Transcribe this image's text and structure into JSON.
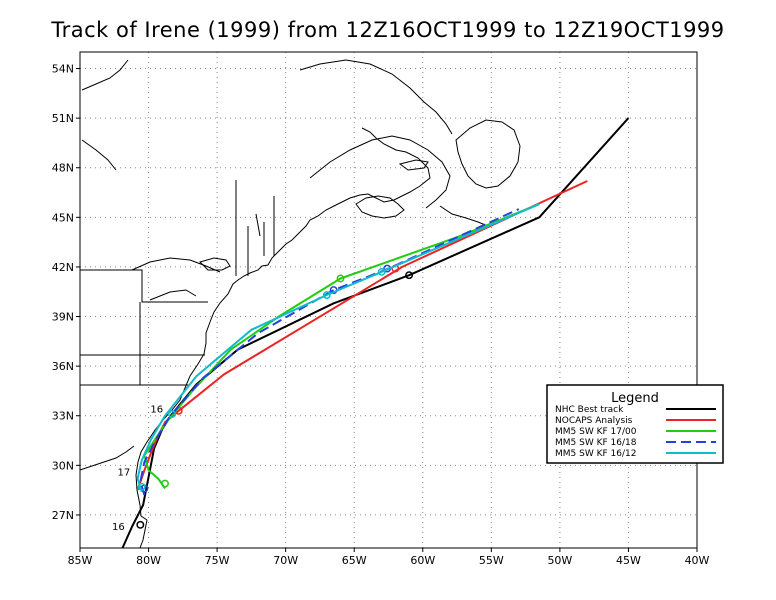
{
  "title": "Track of Irene (1999) from 12Z16OCT1999 to 12Z19OCT1999",
  "map": {
    "lon_range": [
      -85,
      -40
    ],
    "lat_range": [
      25,
      55
    ],
    "lon_ticks": [
      {
        "value": -85,
        "label": "85W"
      },
      {
        "value": -80,
        "label": "80W"
      },
      {
        "value": -75,
        "label": "75W"
      },
      {
        "value": -70,
        "label": "70W"
      },
      {
        "value": -65,
        "label": "65W"
      },
      {
        "value": -60,
        "label": "60W"
      },
      {
        "value": -55,
        "label": "55W"
      },
      {
        "value": -50,
        "label": "50W"
      },
      {
        "value": -45,
        "label": "45W"
      },
      {
        "value": -40,
        "label": "40W"
      }
    ],
    "lat_ticks": [
      {
        "value": 27,
        "label": "27N"
      },
      {
        "value": 30,
        "label": "30N"
      },
      {
        "value": 33,
        "label": "33N"
      },
      {
        "value": 36,
        "label": "36N"
      },
      {
        "value": 39,
        "label": "39N"
      },
      {
        "value": 42,
        "label": "42N"
      },
      {
        "value": 45,
        "label": "45N"
      },
      {
        "value": 48,
        "label": "48N"
      },
      {
        "value": 51,
        "label": "51N"
      },
      {
        "value": 54,
        "label": "54N"
      }
    ],
    "grid": true
  },
  "day_labels": [
    {
      "text": "16",
      "lon": -82.2,
      "lat": 26.1
    },
    {
      "text": "17",
      "lon": -81.8,
      "lat": 29.4
    },
    {
      "text": "16",
      "lon": -79.4,
      "lat": 33.2
    }
  ],
  "legend": {
    "title": "Legend",
    "entries": [
      {
        "label": "NHC Best track",
        "color": "#000000",
        "dash": "solid"
      },
      {
        "label": "NOCAPS Analysis",
        "color": "#ee2222",
        "dash": "solid"
      },
      {
        "label": "MM5 SW KF 17/00",
        "color": "#22cc11",
        "dash": "solid"
      },
      {
        "label": "MM5 SW KF 16/18",
        "color": "#2244dd",
        "dash": "dashed"
      },
      {
        "label": "MM5 SW KF 16/12",
        "color": "#11bbcc",
        "dash": "solid"
      }
    ]
  },
  "chart_data": {
    "type": "line",
    "title": "Track of Irene (1999) from 12Z16OCT1999 to 12Z19OCT1999",
    "xlabel": "",
    "ylabel": "",
    "xlim": [
      -85,
      -40
    ],
    "ylim": [
      25,
      55
    ],
    "series": [
      {
        "name": "NHC Best track",
        "color": "#000000",
        "dash": "solid",
        "lon": [
          -81.9,
          -81.2,
          -80.4,
          -80.0,
          -79.6,
          -79.0,
          -78.3,
          -76.5,
          -73.5,
          -66.5,
          -61.0,
          -51.5,
          -45.0
        ],
        "lat": [
          25.0,
          26.3,
          27.6,
          29.3,
          31.0,
          32.2,
          33.1,
          34.9,
          37.0,
          39.8,
          41.5,
          45.0,
          51.0
        ],
        "markers_lon": [
          -80.6,
          -61.0
        ],
        "markers_lat": [
          26.4,
          41.5
        ]
      },
      {
        "name": "NOCAPS Analysis",
        "color": "#ee2222",
        "dash": "solid",
        "lon": [
          -80.8,
          -80.3,
          -79.8,
          -79.3,
          -78.8,
          -77.8,
          -74.5,
          -66.5,
          -61.5,
          -48.0
        ],
        "lat": [
          28.5,
          29.7,
          30.8,
          31.8,
          32.6,
          33.3,
          35.5,
          39.5,
          42.0,
          47.2
        ],
        "markers_lon": [
          -77.8,
          -62.0
        ],
        "markers_lat": [
          33.3,
          41.9
        ]
      },
      {
        "name": "MM5 SW KF 17/00",
        "color": "#22cc11",
        "dash": "solid",
        "lon": [
          -78.8,
          -79.3,
          -80.0,
          -80.3,
          -79.5,
          -78.8,
          -76.8,
          -74.0,
          -70.5,
          -66.0,
          -57.5,
          -51.5
        ],
        "lat": [
          28.6,
          29.2,
          29.7,
          30.6,
          31.6,
          32.5,
          34.5,
          37.0,
          39.0,
          41.3,
          43.8,
          45.8
        ],
        "markers_lon": [
          -78.8,
          -66.0
        ],
        "markers_lat": [
          28.9,
          41.3
        ]
      },
      {
        "name": "MM5 SW KF 16/18",
        "color": "#2244dd",
        "dash": "dashed",
        "lon": [
          -80.3,
          -80.6,
          -80.3,
          -79.5,
          -78.5,
          -76.0,
          -72.0,
          -66.5,
          -62.5,
          -53.0
        ],
        "lat": [
          28.2,
          29.0,
          30.2,
          31.5,
          32.9,
          35.3,
          38.0,
          40.6,
          41.9,
          45.5
        ],
        "markers_lon": [
          -80.3,
          -66.5,
          -62.6
        ],
        "markers_lat": [
          28.6,
          40.6,
          41.9
        ]
      },
      {
        "name": "MM5 SW KF 16/12",
        "color": "#11bbcc",
        "dash": "solid",
        "lon": [
          -80.5,
          -80.8,
          -80.5,
          -79.8,
          -78.8,
          -76.5,
          -72.5,
          -67.0,
          -63.0,
          -51.5
        ],
        "lat": [
          28.4,
          29.2,
          30.3,
          31.6,
          33.0,
          35.4,
          38.2,
          40.3,
          41.7,
          45.8
        ],
        "markers_lon": [
          -80.5,
          -78.3,
          -67.0,
          -63.0
        ],
        "markers_lat": [
          28.7,
          33.1,
          40.3,
          41.7
        ]
      }
    ]
  }
}
